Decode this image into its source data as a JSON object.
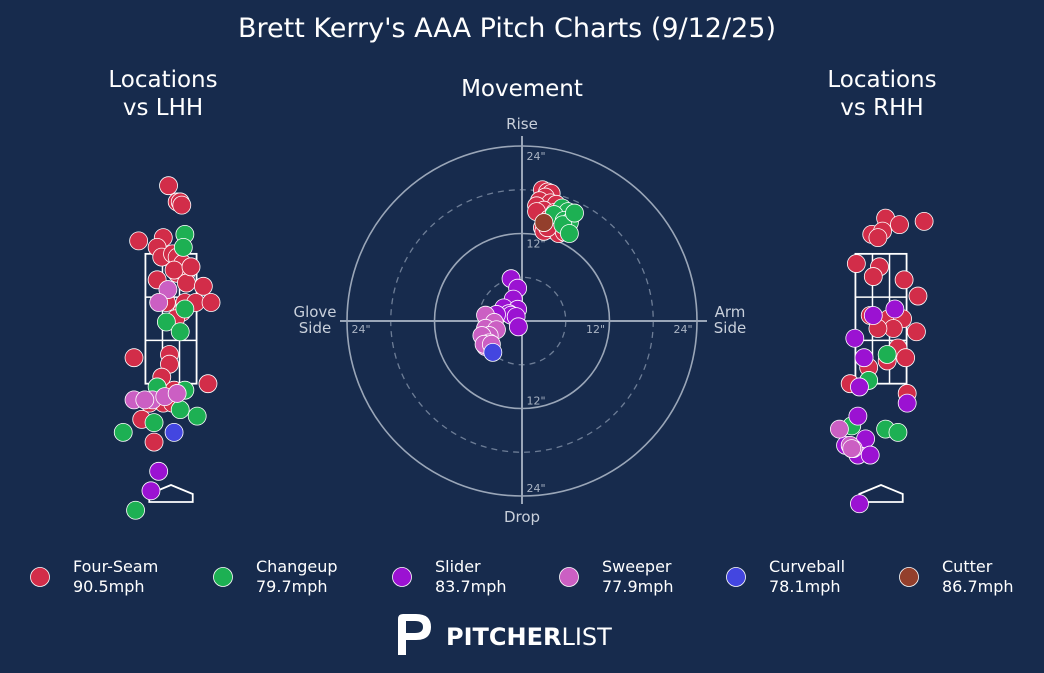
{
  "title": "Brett Kerry's AAA Pitch Charts (9/12/25)",
  "colors": {
    "background": "#172b4d",
    "Four-Seam": "#d22d49",
    "Changeup": "#1db053",
    "Slider": "#9b12d2",
    "Sweeper": "#cb5fc3",
    "Curveball": "#4346e0",
    "Cutter": "#933f2c"
  },
  "brand": {
    "bold": "PITCHER",
    "light": "LIST",
    "logo": "pitcherlist-p-icon"
  },
  "legend": [
    {
      "pitch": "Four-Seam",
      "velo": "90.5mph"
    },
    {
      "pitch": "Changeup",
      "velo": "79.7mph"
    },
    {
      "pitch": "Slider",
      "velo": "83.7mph"
    },
    {
      "pitch": "Sweeper",
      "velo": "77.9mph"
    },
    {
      "pitch": "Curveball",
      "velo": "78.1mph"
    },
    {
      "pitch": "Cutter",
      "velo": "86.7mph"
    }
  ],
  "chart_data": [
    {
      "type": "scatter",
      "title": "Locations\nvs LHH",
      "xlim": [
        -3.7,
        3.7
      ],
      "ylim": [
        -0.6,
        5.3
      ],
      "strike_zone": {
        "x": [
          -0.83,
          0.83
        ],
        "y": [
          1.5,
          3.5
        ]
      },
      "series": [
        {
          "name": "Four-Seam",
          "points": [
            [
              -0.08,
              4.55
            ],
            [
              0.2,
              4.3
            ],
            [
              0.3,
              4.3
            ],
            [
              0.35,
              4.25
            ],
            [
              -1.05,
              3.7
            ],
            [
              -0.25,
              3.75
            ],
            [
              -0.45,
              3.6
            ],
            [
              -0.3,
              3.45
            ],
            [
              0.05,
              3.5
            ],
            [
              0.2,
              3.45
            ],
            [
              0.38,
              3.35
            ],
            [
              0.48,
              3.2
            ],
            [
              0.2,
              3.2
            ],
            [
              0.1,
              3.25
            ],
            [
              -0.45,
              3.1
            ],
            [
              0.5,
              3.05
            ],
            [
              0.65,
              3.3
            ],
            [
              1.05,
              3.0
            ],
            [
              -0.15,
              2.75
            ],
            [
              0.45,
              2.75
            ],
            [
              0.8,
              2.75
            ],
            [
              0.35,
              2.6
            ],
            [
              0.15,
              2.5
            ],
            [
              1.3,
              2.75
            ],
            [
              -1.2,
              1.9
            ],
            [
              -0.05,
              1.95
            ],
            [
              -0.05,
              1.8
            ],
            [
              -0.3,
              1.6
            ],
            [
              0.1,
              1.4
            ],
            [
              0.0,
              1.25
            ],
            [
              -0.25,
              1.2
            ],
            [
              -0.7,
              1.2
            ],
            [
              0.05,
              1.2
            ],
            [
              1.2,
              1.5
            ],
            [
              -0.95,
              0.95
            ],
            [
              -0.55,
              0.6
            ]
          ]
        },
        {
          "name": "Changeup",
          "points": [
            [
              0.45,
              3.8
            ],
            [
              0.4,
              3.6
            ],
            [
              0.45,
              2.65
            ],
            [
              -0.15,
              2.45
            ],
            [
              0.3,
              2.3
            ],
            [
              -0.45,
              1.45
            ],
            [
              0.45,
              1.4
            ],
            [
              0.3,
              1.1
            ],
            [
              -0.55,
              0.9
            ],
            [
              0.85,
              1.0
            ],
            [
              -1.55,
              0.75
            ],
            [
              -1.15,
              -0.45
            ]
          ]
        },
        {
          "name": "Slider",
          "points": [
            [
              -0.4,
              0.15
            ],
            [
              -0.65,
              -0.15
            ]
          ]
        },
        {
          "name": "Sweeper",
          "points": [
            [
              -0.1,
              2.95
            ],
            [
              -0.4,
              2.75
            ],
            [
              -0.6,
              1.25
            ],
            [
              -0.2,
              1.3
            ],
            [
              0.2,
              1.35
            ],
            [
              -1.2,
              1.25
            ],
            [
              -0.85,
              1.25
            ]
          ]
        },
        {
          "name": "Curveball",
          "points": [
            [
              0.1,
              0.75
            ]
          ]
        },
        {
          "name": "Cutter",
          "points": []
        }
      ]
    },
    {
      "type": "scatter",
      "title": "Movement",
      "polar": true,
      "rings_solid": [
        12,
        24
      ],
      "rings_dashed": [
        6,
        18
      ],
      "axis_labels": {
        "top": "Rise",
        "bottom": "Drop",
        "left": "Glove\nSide",
        "right": "Arm\nSide"
      },
      "ring_labels": [
        {
          "text": "24\"",
          "pos": "top"
        },
        {
          "text": "12\"",
          "pos": "top"
        },
        {
          "text": "12\"",
          "pos": "bottom"
        },
        {
          "text": "24\"",
          "pos": "bottom"
        },
        {
          "text": "24\"",
          "pos": "left"
        },
        {
          "text": "12\"",
          "pos": "right"
        },
        {
          "text": "24\"",
          "pos": "right"
        }
      ],
      "series": [
        {
          "name": "Four-Seam",
          "points": [
            [
              2.8,
              18
            ],
            [
              3.5,
              17.7
            ],
            [
              4.0,
              17.5
            ],
            [
              3.2,
              17
            ],
            [
              2.4,
              16.5
            ],
            [
              3.9,
              16.2
            ],
            [
              4.7,
              16.0
            ],
            [
              2.0,
              15.8
            ],
            [
              3.0,
              15.2
            ],
            [
              4.5,
              14.9
            ],
            [
              2.0,
              15
            ],
            [
              5.5,
              14.5
            ],
            [
              3.7,
              14
            ],
            [
              4.5,
              13.5
            ],
            [
              5.2,
              13.3
            ],
            [
              2.8,
              12.8
            ],
            [
              3.0,
              12.3
            ],
            [
              5.0,
              12.0
            ],
            [
              5.8,
              12.2
            ],
            [
              3.5,
              12.8
            ]
          ]
        },
        {
          "name": "Changeup",
          "points": [
            [
              5.5,
              15.5
            ],
            [
              6.3,
              15.0
            ],
            [
              4.4,
              14.6
            ],
            [
              5.8,
              13.8
            ],
            [
              6.5,
              13.5
            ],
            [
              5.6,
              13.2
            ],
            [
              7.2,
              14.8
            ],
            [
              6.5,
              12.0
            ]
          ]
        },
        {
          "name": "Slider",
          "points": [
            [
              -1.5,
              5.8
            ],
            [
              -0.6,
              4.5
            ],
            [
              -1.2,
              3.0
            ],
            [
              -2.5,
              1.8
            ],
            [
              -0.6,
              1.6
            ],
            [
              -1.8,
              1.0
            ],
            [
              -1.5,
              0.8
            ],
            [
              -0.8,
              0.6
            ],
            [
              -3.5,
              0.9
            ],
            [
              -0.5,
              -0.8
            ]
          ]
        },
        {
          "name": "Sweeper",
          "points": [
            [
              -5.0,
              0.8
            ],
            [
              -3.8,
              -0.2
            ],
            [
              -5.0,
              -1.0
            ],
            [
              -3.5,
              -1.2
            ],
            [
              -4.5,
              -2.0
            ],
            [
              -5.5,
              -2.0
            ],
            [
              -4.5,
              -3.0
            ],
            [
              -5.0,
              -3.5
            ],
            [
              -5.2,
              -3.2
            ],
            [
              -4.2,
              -3.2
            ]
          ]
        },
        {
          "name": "Curveball",
          "points": [
            [
              -4.0,
              -4.3
            ]
          ]
        },
        {
          "name": "Cutter",
          "points": [
            [
              3.0,
              13.5
            ]
          ]
        }
      ]
    },
    {
      "type": "scatter",
      "title": "Locations\nvs RHH",
      "xlim": [
        -3.7,
        3.7
      ],
      "ylim": [
        -0.6,
        5.3
      ],
      "strike_zone": {
        "x": [
          -0.83,
          0.83
        ],
        "y": [
          1.5,
          3.5
        ]
      },
      "series": [
        {
          "name": "Four-Seam",
          "points": [
            [
              0.15,
              4.05
            ],
            [
              0.6,
              3.95
            ],
            [
              -0.3,
              3.8
            ],
            [
              0.05,
              3.85
            ],
            [
              -0.1,
              3.75
            ],
            [
              -0.8,
              3.35
            ],
            [
              -0.05,
              3.3
            ],
            [
              -0.25,
              3.15
            ],
            [
              0.75,
              3.1
            ],
            [
              1.2,
              2.85
            ],
            [
              -0.35,
              2.55
            ],
            [
              0.25,
              2.5
            ],
            [
              0.7,
              2.5
            ],
            [
              0.4,
              2.35
            ],
            [
              -0.1,
              2.35
            ],
            [
              1.15,
              2.3
            ],
            [
              0.55,
              2.05
            ],
            [
              0.2,
              1.85
            ],
            [
              -0.4,
              1.75
            ],
            [
              -1.0,
              1.5
            ],
            [
              0.8,
              1.9
            ],
            [
              0.85,
              1.35
            ],
            [
              1.4,
              4.0
            ]
          ]
        },
        {
          "name": "Changeup",
          "points": [
            [
              -0.4,
              1.55
            ],
            [
              0.2,
              1.95
            ],
            [
              -0.95,
              0.85
            ],
            [
              0.15,
              0.8
            ],
            [
              0.55,
              0.75
            ]
          ]
        },
        {
          "name": "Slider",
          "points": [
            [
              0.45,
              2.65
            ],
            [
              -0.85,
              2.2
            ],
            [
              -0.25,
              2.55
            ],
            [
              -0.55,
              1.9
            ],
            [
              -0.7,
              1.45
            ],
            [
              -0.75,
              1.0
            ],
            [
              0.85,
              1.2
            ],
            [
              -1.15,
              0.55
            ],
            [
              -0.5,
              0.65
            ],
            [
              -0.75,
              0.4
            ],
            [
              -0.35,
              0.4
            ],
            [
              -0.7,
              -0.35
            ]
          ]
        },
        {
          "name": "Sweeper",
          "points": [
            [
              -1.35,
              0.8
            ],
            [
              -0.9,
              0.5
            ],
            [
              -1.0,
              0.55
            ],
            [
              -0.95,
              0.5
            ]
          ]
        },
        {
          "name": "Curveball",
          "points": []
        },
        {
          "name": "Cutter",
          "points": []
        }
      ]
    }
  ]
}
